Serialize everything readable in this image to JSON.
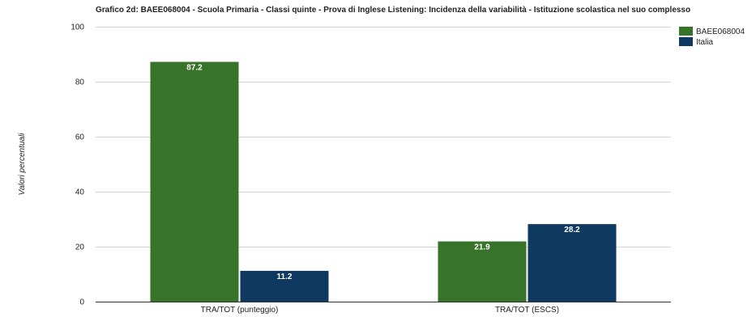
{
  "chart_data": {
    "type": "bar",
    "title": "Grafico 2d: BAEE068004 - Scuola Primaria - Classi quinte - Prova di Inglese Listening: Incidenza della variabilità - Istituzione scolastica nel suo complesso",
    "ylabel": "Valori percentuali",
    "xlabel": "",
    "categories": [
      "TRA/TOT (punteggio)",
      "TRA/TOT (ESCS)"
    ],
    "series": [
      {
        "name": "BAEE068004",
        "values": [
          87.2,
          21.9
        ],
        "labels": [
          "87.2",
          "21.9"
        ],
        "color": "#38732a"
      },
      {
        "name": "Italia",
        "values": [
          11.2,
          28.2
        ],
        "labels": [
          "11.2",
          "28.2"
        ],
        "color": "#0e3a62"
      }
    ],
    "ylim": [
      0,
      100
    ],
    "yticks": [
      "0",
      "20",
      "40",
      "60",
      "80",
      "100"
    ],
    "grid": true,
    "legend": "top-right"
  }
}
